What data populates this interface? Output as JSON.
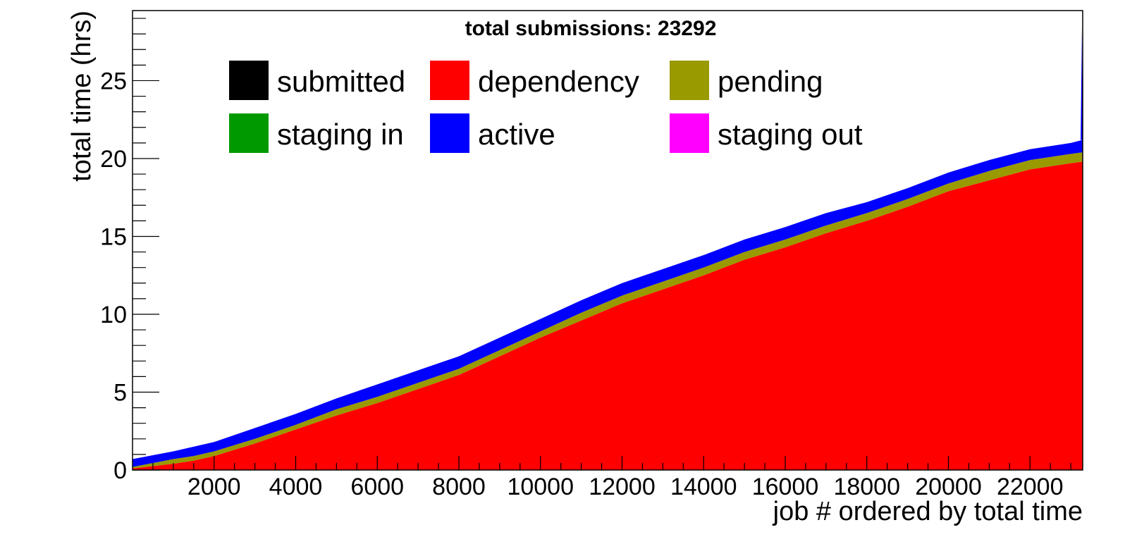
{
  "chart_data": {
    "type": "area",
    "title": "total submissions: 23292",
    "xlabel": "job # ordered by total time",
    "ylabel": "total time (hrs)",
    "xlim": [
      0,
      23292
    ],
    "ylim": [
      0,
      29.5
    ],
    "x_ticks": [
      2000,
      4000,
      6000,
      8000,
      10000,
      12000,
      14000,
      16000,
      18000,
      20000,
      22000
    ],
    "y_ticks": [
      0,
      5,
      10,
      15,
      20,
      25
    ],
    "grid": false,
    "legend_position": "top",
    "legend": [
      {
        "name": "submitted",
        "color": "#000000"
      },
      {
        "name": "dependency",
        "color": "#ff0000"
      },
      {
        "name": "pending",
        "color": "#999900"
      },
      {
        "name": "staging in",
        "color": "#009900"
      },
      {
        "name": "active",
        "color": "#0000ff"
      },
      {
        "name": "staging out",
        "color": "#ff00ff"
      }
    ],
    "x": [
      0,
      1000,
      1500,
      2000,
      3000,
      4000,
      5000,
      6000,
      7000,
      8000,
      9000,
      10000,
      11000,
      12000,
      13000,
      14000,
      15000,
      16000,
      17000,
      18000,
      19000,
      20000,
      21000,
      22000,
      23000,
      23292
    ],
    "series": [
      {
        "name": "dependency",
        "color": "#ff0000",
        "values": [
          0.1,
          0.4,
          0.6,
          0.9,
          1.7,
          2.6,
          3.5,
          4.3,
          5.2,
          6.1,
          7.3,
          8.5,
          9.6,
          10.7,
          11.6,
          12.5,
          13.5,
          14.3,
          15.2,
          16.0,
          16.9,
          17.9,
          18.6,
          19.3,
          19.7,
          19.8
        ]
      },
      {
        "name": "pending",
        "color": "#999900",
        "values": [
          0.1,
          0.3,
          0.3,
          0.3,
          0.3,
          0.3,
          0.4,
          0.4,
          0.4,
          0.4,
          0.4,
          0.4,
          0.5,
          0.5,
          0.5,
          0.5,
          0.5,
          0.5,
          0.5,
          0.5,
          0.5,
          0.5,
          0.6,
          0.6,
          0.6,
          0.6
        ]
      },
      {
        "name": "active",
        "color": "#0000ff",
        "values": [
          0.5,
          0.5,
          0.6,
          0.6,
          0.7,
          0.7,
          0.7,
          0.8,
          0.8,
          0.8,
          0.8,
          0.8,
          0.8,
          0.8,
          0.8,
          0.8,
          0.8,
          0.8,
          0.8,
          0.7,
          0.7,
          0.7,
          0.7,
          0.7,
          0.7,
          0.8
        ]
      }
    ]
  }
}
